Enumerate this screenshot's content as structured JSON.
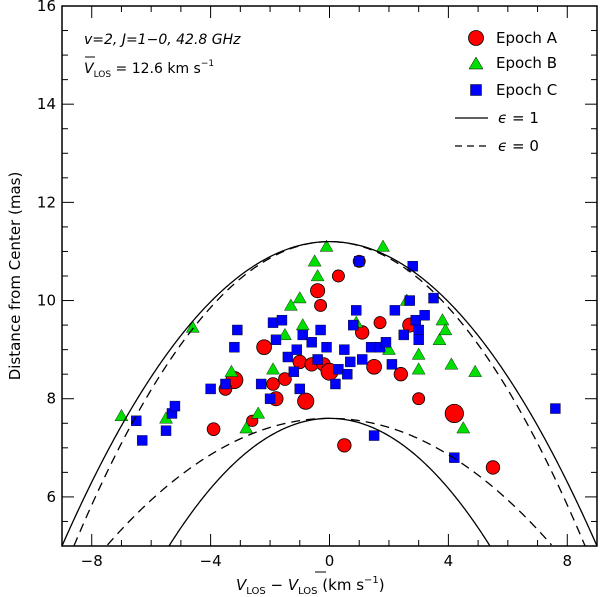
{
  "chart_data": {
    "type": "scatter",
    "annotation": {
      "line1": "v=2, J=1−0, 42.8 GHz",
      "vbar": "V",
      "vbar_sub": "LOS",
      "line2_rest": " = 12.6 km s",
      "line2_sup": "−1"
    },
    "xlabel": {
      "main": "V",
      "sub": "LOS",
      "minus": " − ",
      "bar": "V",
      "bar_sub": "LOS",
      "units": " (km s",
      "units_sup": "−1",
      "units_close": ")"
    },
    "ylabel": "Distance from Center (mas)",
    "xlim": [
      -9,
      9
    ],
    "ylim": [
      5,
      16
    ],
    "xticks": [
      -8,
      -4,
      0,
      4,
      8
    ],
    "yticks": [
      6,
      8,
      10,
      12,
      14,
      16
    ],
    "grid": false,
    "legend_position": "top-right",
    "legend": {
      "series": [
        {
          "label": "Epoch A",
          "marker": "circle",
          "color": "#ff0000"
        },
        {
          "label": "Epoch B",
          "marker": "triangle",
          "color": "#00dd00"
        },
        {
          "label": "Epoch C",
          "marker": "square",
          "color": "#0000ff"
        }
      ],
      "lines": [
        {
          "label_sym": "ϵ",
          "label_rest": " = 1",
          "style": "solid"
        },
        {
          "label_sym": "ϵ",
          "label_rest": " = 0",
          "style": "dashed"
        }
      ]
    },
    "curves": [
      {
        "name": "eps1-outer",
        "style": "solid",
        "vertex_y": 11.2,
        "half_width_at_5": 9.0
      },
      {
        "name": "eps0-outer",
        "style": "dashed",
        "vertex_y": 11.2,
        "half_width_at_5": 8.6
      },
      {
        "name": "eps1-inner",
        "style": "solid",
        "vertex_y": 7.6,
        "half_width_at_5": 5.4
      },
      {
        "name": "eps0-inner",
        "style": "dashed",
        "vertex_y": 7.6,
        "half_width_at_5": 7.5
      }
    ],
    "series": [
      {
        "name": "Epoch A",
        "marker": "circle",
        "color": "#ff0000",
        "points": [
          [
            -3.9,
            7.38,
            0.7
          ],
          [
            -3.2,
            8.38,
            1.0
          ],
          [
            -3.5,
            8.2,
            0.7
          ],
          [
            -2.6,
            7.55,
            0.6
          ],
          [
            -2.2,
            9.05,
            0.85
          ],
          [
            -1.9,
            8.3,
            0.7
          ],
          [
            -1.8,
            8.0,
            0.8
          ],
          [
            -1.5,
            8.4,
            0.7
          ],
          [
            -1.0,
            8.75,
            0.75
          ],
          [
            -0.8,
            7.95,
            0.95
          ],
          [
            -0.6,
            8.7,
            0.75
          ],
          [
            -0.4,
            10.2,
            0.8
          ],
          [
            -0.3,
            9.9,
            0.65
          ],
          [
            -0.2,
            8.7,
            0.75
          ],
          [
            0.0,
            8.55,
            1.0
          ],
          [
            0.3,
            10.5,
            0.65
          ],
          [
            0.5,
            7.05,
            0.75
          ],
          [
            1.0,
            10.8,
            0.65
          ],
          [
            1.1,
            9.35,
            0.75
          ],
          [
            1.5,
            8.65,
            0.85
          ],
          [
            1.7,
            9.55,
            0.65
          ],
          [
            2.4,
            8.5,
            0.75
          ],
          [
            2.7,
            9.5,
            0.8
          ],
          [
            3.0,
            8.0,
            0.65
          ],
          [
            4.2,
            7.7,
            1.1
          ],
          [
            5.5,
            6.6,
            0.75
          ]
        ]
      },
      {
        "name": "Epoch B",
        "marker": "triangle",
        "color": "#00dd00",
        "points": [
          [
            -7.0,
            7.65
          ],
          [
            -5.5,
            7.6
          ],
          [
            -4.6,
            9.45
          ],
          [
            -3.3,
            8.55
          ],
          [
            -2.8,
            7.4
          ],
          [
            -2.4,
            7.7
          ],
          [
            -1.9,
            8.6
          ],
          [
            -1.5,
            9.3
          ],
          [
            -1.3,
            9.9
          ],
          [
            -1.0,
            10.05
          ],
          [
            -0.9,
            9.5
          ],
          [
            -0.5,
            10.8
          ],
          [
            -0.4,
            10.5
          ],
          [
            -0.1,
            11.1
          ],
          [
            0.9,
            9.55
          ],
          [
            1.8,
            11.1
          ],
          [
            2.0,
            9.0
          ],
          [
            2.6,
            10.0
          ],
          [
            3.0,
            8.6
          ],
          [
            3.0,
            8.9
          ],
          [
            3.7,
            9.2
          ],
          [
            3.8,
            9.6
          ],
          [
            3.9,
            9.4
          ],
          [
            4.1,
            8.7
          ],
          [
            4.5,
            7.4
          ],
          [
            4.9,
            8.55
          ]
        ]
      },
      {
        "name": "Epoch C",
        "marker": "square",
        "color": "#0000ff",
        "points": [
          [
            -6.5,
            7.55
          ],
          [
            -6.3,
            7.15
          ],
          [
            -5.5,
            7.35
          ],
          [
            -5.3,
            7.7
          ],
          [
            -5.2,
            7.85
          ],
          [
            -4.0,
            8.2
          ],
          [
            -3.5,
            8.3
          ],
          [
            -3.1,
            9.4
          ],
          [
            -3.2,
            9.05
          ],
          [
            -2.3,
            8.3
          ],
          [
            -2.0,
            8.0
          ],
          [
            -1.9,
            9.55
          ],
          [
            -1.8,
            9.2
          ],
          [
            -1.6,
            9.6
          ],
          [
            -1.4,
            8.85
          ],
          [
            -1.2,
            8.55
          ],
          [
            -1.0,
            8.2
          ],
          [
            -1.1,
            9.0
          ],
          [
            -0.9,
            9.3
          ],
          [
            -0.6,
            9.15
          ],
          [
            -0.4,
            8.8
          ],
          [
            -0.3,
            9.4
          ],
          [
            -0.1,
            9.05
          ],
          [
            0.2,
            8.3
          ],
          [
            0.3,
            8.6
          ],
          [
            0.5,
            9.0
          ],
          [
            0.6,
            8.5
          ],
          [
            0.7,
            8.75
          ],
          [
            0.8,
            9.5
          ],
          [
            0.9,
            9.8
          ],
          [
            1.0,
            10.8
          ],
          [
            1.1,
            8.8
          ],
          [
            1.4,
            9.05
          ],
          [
            1.5,
            7.25
          ],
          [
            1.7,
            9.05
          ],
          [
            1.9,
            9.15
          ],
          [
            2.1,
            8.7
          ],
          [
            2.2,
            9.8
          ],
          [
            2.5,
            9.3
          ],
          [
            2.7,
            10.0
          ],
          [
            2.8,
            10.7
          ],
          [
            2.9,
            9.6
          ],
          [
            3.0,
            9.4
          ],
          [
            3.0,
            9.2
          ],
          [
            3.2,
            9.7
          ],
          [
            3.5,
            10.05
          ],
          [
            4.2,
            6.8
          ],
          [
            7.6,
            7.8
          ]
        ]
      }
    ]
  }
}
